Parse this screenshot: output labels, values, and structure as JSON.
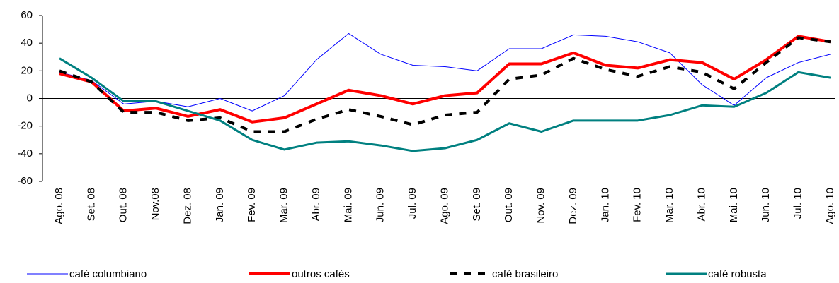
{
  "chart_data": {
    "type": "line",
    "categories": [
      "Ago. 08",
      "Set. 08",
      "Out. 08",
      "Nov.08",
      "Dez. 08",
      "Jan. 09",
      "Fev. 09",
      "Mar. 09",
      "Abr. 09",
      "Mai. 09",
      "Jun. 09",
      "Jul. 09",
      "Ago. 09",
      "Set. 09",
      "Out. 09",
      "Nov. 09",
      "Dez. 09",
      "Jan. 10",
      "Fev. 10",
      "Mar. 10",
      "Abr. 10",
      "Mai. 10",
      "Jun. 10",
      "Jul. 10",
      "Ago. 10"
    ],
    "series": [
      {
        "name": "café columbiano",
        "color": "#0000ff",
        "values": [
          19,
          13,
          -4,
          -2,
          -6,
          0,
          -9,
          2,
          28,
          47,
          32,
          24,
          23,
          20,
          36,
          36,
          46,
          45,
          41,
          33,
          10,
          -5,
          15,
          26,
          32
        ]
      },
      {
        "name": "outros cafés",
        "color": "#ff0000",
        "values": [
          18,
          12,
          -9,
          -7,
          -13,
          -8,
          -17,
          -14,
          -4,
          6,
          2,
          -4,
          2,
          4,
          25,
          25,
          33,
          24,
          22,
          28,
          26,
          14,
          28,
          45,
          41
        ]
      },
      {
        "name": "café brasileiro",
        "color": "#000000",
        "values": [
          20,
          12,
          -10,
          -10,
          -16,
          -14,
          -24,
          -24,
          -15,
          -8,
          -13,
          -19,
          -12,
          -10,
          14,
          17,
          29,
          21,
          16,
          23,
          19,
          7,
          26,
          44,
          41
        ]
      },
      {
        "name": "café robusta",
        "color": "#008080",
        "values": [
          29,
          15,
          -2,
          -2,
          -9,
          -16,
          -30,
          -37,
          -32,
          -31,
          -34,
          -38,
          -36,
          -30,
          -18,
          -24,
          -16,
          -16,
          -16,
          -12,
          -5,
          -6,
          4,
          19,
          15
        ]
      }
    ],
    "ylim": [
      -60,
      60
    ],
    "yticks": [
      -60,
      -40,
      -20,
      0,
      20,
      40,
      60
    ]
  }
}
